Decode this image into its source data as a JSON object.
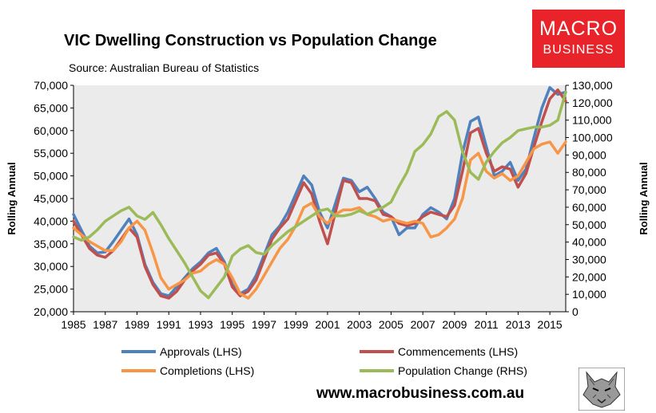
{
  "header": {
    "title": "VIC Dwelling Construction vs Population Change",
    "subtitle": "Source: Australian Bureau of Statistics"
  },
  "logo": {
    "line1": "MACRO",
    "line2": "BUSINESS",
    "color": "#e8242a"
  },
  "footer": {
    "url": "www.macrobusiness.com.au"
  },
  "chart_data": {
    "type": "line",
    "title": "VIC Dwelling Construction vs Population Change",
    "ylabel": "Rolling Annual",
    "y2label": "Rolling Annual",
    "ylim": [
      20000,
      70000
    ],
    "y2lim": [
      0,
      130000
    ],
    "xlim": [
      1985,
      2016
    ],
    "yticks": [
      "20,000",
      "25,000",
      "30,000",
      "35,000",
      "40,000",
      "45,000",
      "50,000",
      "55,000",
      "60,000",
      "65,000",
      "70,000"
    ],
    "y2ticks": [
      "0",
      "10,000",
      "20,000",
      "30,000",
      "40,000",
      "50,000",
      "60,000",
      "70,000",
      "80,000",
      "90,000",
      "100,000",
      "110,000",
      "120,000",
      "130,000"
    ],
    "xticks": [
      "1985",
      "1987",
      "1989",
      "1991",
      "1993",
      "1995",
      "1997",
      "1999",
      "2001",
      "2003",
      "2005",
      "2007",
      "2009",
      "2011",
      "2013",
      "2015"
    ],
    "background": "#ebebeb",
    "series": [
      {
        "name": "Approvals (LHS)",
        "axis": "left",
        "color": "#4f81bd",
        "x": [
          1985,
          1985.5,
          1986,
          1986.5,
          1987,
          1987.5,
          1988,
          1988.5,
          1989,
          1989.5,
          1990,
          1990.5,
          1991,
          1991.5,
          1992,
          1992.5,
          1993,
          1993.5,
          1994,
          1994.5,
          1995,
          1995.5,
          1996,
          1996.5,
          1997,
          1997.5,
          1998,
          1998.5,
          1999,
          1999.5,
          2000,
          2000.5,
          2001,
          2001.5,
          2002,
          2002.5,
          2003,
          2003.5,
          2004,
          2004.5,
          2005,
          2005.5,
          2006,
          2006.5,
          2007,
          2007.5,
          2008,
          2008.5,
          2009,
          2009.5,
          2010,
          2010.5,
          2011,
          2011.5,
          2012,
          2012.5,
          2013,
          2013.5,
          2014,
          2014.5,
          2015,
          2015.5,
          2016
        ],
        "values": [
          41500,
          38000,
          34500,
          33000,
          33200,
          35500,
          38000,
          40500,
          37000,
          30500,
          26500,
          24000,
          23500,
          25500,
          27500,
          29500,
          31000,
          33000,
          34000,
          31000,
          26000,
          24000,
          25000,
          28000,
          32500,
          37000,
          39000,
          42000,
          46000,
          50000,
          48000,
          42000,
          38500,
          44000,
          49500,
          49000,
          46500,
          47500,
          45000,
          42000,
          41000,
          37000,
          38500,
          38500,
          41500,
          43000,
          42000,
          40500,
          45000,
          55000,
          62000,
          63000,
          56500,
          50000,
          51000,
          53000,
          49000,
          51500,
          58500,
          65000,
          69500,
          68000,
          68500
        ]
      },
      {
        "name": "Commencements (LHS)",
        "axis": "left",
        "color": "#c0504d",
        "x": [
          1985,
          1985.5,
          1986,
          1986.5,
          1987,
          1987.5,
          1988,
          1988.5,
          1989,
          1989.5,
          1990,
          1990.5,
          1991,
          1991.5,
          1992,
          1992.5,
          1993,
          1993.5,
          1994,
          1994.5,
          1995,
          1995.5,
          1996,
          1996.5,
          1997,
          1997.5,
          1998,
          1998.5,
          1999,
          1999.5,
          2000,
          2000.5,
          2001,
          2001.5,
          2002,
          2002.5,
          2003,
          2003.5,
          2004,
          2004.5,
          2005,
          2005.5,
          2006,
          2006.5,
          2007,
          2007.5,
          2008,
          2008.5,
          2009,
          2009.5,
          2010,
          2010.5,
          2011,
          2011.5,
          2012,
          2012.5,
          2013,
          2013.5,
          2014,
          2014.5,
          2015,
          2015.5,
          2016
        ],
        "values": [
          40000,
          37000,
          34000,
          32500,
          32000,
          33500,
          36000,
          38500,
          36500,
          30000,
          26000,
          23500,
          23000,
          24500,
          27000,
          29000,
          30500,
          32500,
          33000,
          30500,
          25500,
          23500,
          24500,
          27000,
          31500,
          36000,
          38500,
          40500,
          44500,
          48500,
          46000,
          40000,
          35000,
          42000,
          49000,
          48500,
          45000,
          45000,
          44500,
          41500,
          41000,
          39500,
          39000,
          39500,
          41000,
          42000,
          41500,
          41000,
          43500,
          51000,
          59500,
          60500,
          55000,
          51000,
          52000,
          51500,
          47500,
          50500,
          56500,
          62000,
          67000,
          69000,
          66500
        ]
      },
      {
        "name": "Completions (LHS)",
        "axis": "left",
        "color": "#f79646",
        "x": [
          1985,
          1985.5,
          1986,
          1986.5,
          1987,
          1987.5,
          1988,
          1988.5,
          1989,
          1989.5,
          1990,
          1990.5,
          1991,
          1991.5,
          1992,
          1992.5,
          1993,
          1993.5,
          1994,
          1994.5,
          1995,
          1995.5,
          1996,
          1996.5,
          1997,
          1997.5,
          1998,
          1998.5,
          1999,
          1999.5,
          2000,
          2000.5,
          2001,
          2001.5,
          2002,
          2002.5,
          2003,
          2003.5,
          2004,
          2004.5,
          2005,
          2005.5,
          2006,
          2006.5,
          2007,
          2007.5,
          2008,
          2008.5,
          2009,
          2009.5,
          2010,
          2010.5,
          2011,
          2011.5,
          2012,
          2012.5,
          2013,
          2013.5,
          2014,
          2014.5,
          2015,
          2015.5,
          2016
        ],
        "values": [
          38500,
          37000,
          35500,
          34500,
          33500,
          33500,
          35500,
          38500,
          40000,
          38000,
          33000,
          27500,
          25000,
          26000,
          27000,
          28500,
          29000,
          30500,
          31500,
          30500,
          27500,
          24000,
          23000,
          25000,
          28000,
          31000,
          34000,
          36000,
          39000,
          43000,
          44000,
          41000,
          39500,
          41500,
          42500,
          42500,
          43000,
          41500,
          41000,
          40000,
          40500,
          40000,
          39500,
          40000,
          39500,
          36500,
          37000,
          38500,
          40500,
          45000,
          53500,
          55000,
          51000,
          49500,
          50500,
          49000,
          50000,
          53000,
          56000,
          57000,
          57500,
          55000,
          57500
        ]
      },
      {
        "name": "Population Change (RHS)",
        "axis": "right",
        "color": "#9bbb59",
        "x": [
          1985,
          1985.5,
          1986,
          1986.5,
          1987,
          1987.5,
          1988,
          1988.5,
          1989,
          1989.5,
          1990,
          1990.5,
          1991,
          1991.5,
          1992,
          1992.5,
          1993,
          1993.5,
          1994,
          1994.5,
          1995,
          1995.5,
          1996,
          1996.5,
          1997,
          1997.5,
          1998,
          1998.5,
          1999,
          1999.5,
          2000,
          2000.5,
          2001,
          2001.5,
          2002,
          2002.5,
          2003,
          2003.5,
          2004,
          2004.5,
          2005,
          2005.5,
          2006,
          2006.5,
          2007,
          2007.5,
          2008,
          2008.5,
          2009,
          2009.5,
          2010,
          2010.5,
          2011,
          2011.5,
          2012,
          2012.5,
          2013,
          2013.5,
          2014,
          2014.5,
          2015,
          2015.5,
          2016
        ],
        "values": [
          43000,
          41000,
          43000,
          47000,
          52000,
          55000,
          58000,
          60000,
          55000,
          53000,
          57000,
          50000,
          42000,
          35000,
          28000,
          20000,
          12000,
          8000,
          14000,
          20000,
          32000,
          36000,
          38000,
          34000,
          33000,
          38000,
          42000,
          46000,
          49000,
          52000,
          55000,
          58000,
          59000,
          55000,
          55000,
          56000,
          58000,
          56000,
          58000,
          60000,
          63000,
          72000,
          80000,
          92000,
          96000,
          102000,
          112000,
          115000,
          110000,
          92000,
          80000,
          76000,
          86000,
          92000,
          97000,
          100000,
          104000,
          105000,
          106000,
          106000,
          107000,
          110000,
          126000
        ]
      }
    ]
  }
}
